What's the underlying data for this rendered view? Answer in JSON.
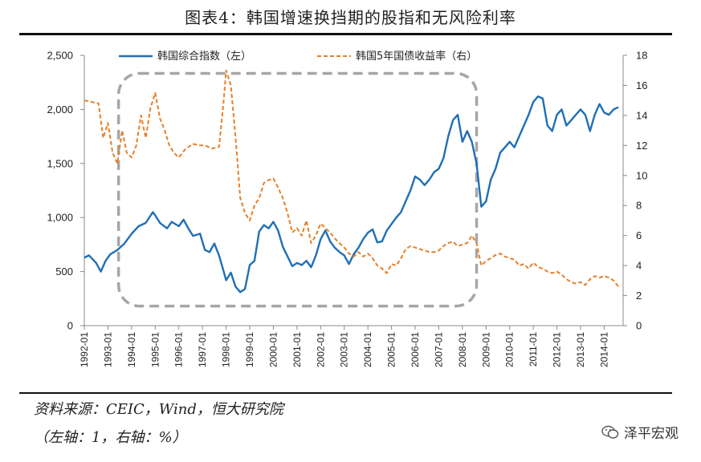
{
  "header": {
    "title": "图表4：韩国增速换挡期的股指和无风险利率"
  },
  "footer": {
    "source": "资料来源：CEIC，Wind，恒大研究院",
    "unit_note": "（左轴：1，右轴：%）",
    "brand": "泽平宏观"
  },
  "colors": {
    "index_line": "#1f6fb5",
    "yield_line": "#e5802a",
    "highlight_box": "#a6a6a6"
  },
  "chart_data": {
    "type": "line",
    "x_categories": [
      "1992-01",
      "1993-01",
      "1994-01",
      "1995-01",
      "1996-01",
      "1997-01",
      "1998-01",
      "1999-01",
      "2000-01",
      "2001-01",
      "2002-01",
      "2003-01",
      "2004-01",
      "2005-01",
      "2006-01",
      "2007-01",
      "2008-01",
      "2009-01",
      "2010-01",
      "2011-01",
      "2012-01",
      "2013-01",
      "2014-01"
    ],
    "y_left": {
      "min": 0,
      "max": 2500,
      "ticks": [
        "0",
        "500",
        "1,000",
        "1,500",
        "2,000",
        "2,500"
      ]
    },
    "y_right": {
      "min": 0,
      "max": 18,
      "ticks": [
        "0",
        "2",
        "4",
        "6",
        "8",
        "10",
        "12",
        "14",
        "16",
        "18"
      ]
    },
    "legend_position": "top",
    "annotation": "dashed rounded box highlighting 1993-2008",
    "series": [
      {
        "name": "韩国综合指数（左）",
        "axis": "left",
        "style": "solid",
        "points": [
          [
            1992.0,
            630
          ],
          [
            1992.2,
            650
          ],
          [
            1992.5,
            580
          ],
          [
            1992.7,
            500
          ],
          [
            1992.9,
            600
          ],
          [
            1993.1,
            660
          ],
          [
            1993.4,
            700
          ],
          [
            1993.7,
            760
          ],
          [
            1994.0,
            850
          ],
          [
            1994.3,
            920
          ],
          [
            1994.6,
            950
          ],
          [
            1994.9,
            1050
          ],
          [
            1995.0,
            1020
          ],
          [
            1995.2,
            950
          ],
          [
            1995.5,
            900
          ],
          [
            1995.7,
            960
          ],
          [
            1996.0,
            920
          ],
          [
            1996.2,
            980
          ],
          [
            1996.4,
            900
          ],
          [
            1996.6,
            830
          ],
          [
            1996.9,
            850
          ],
          [
            1997.1,
            700
          ],
          [
            1997.3,
            680
          ],
          [
            1997.5,
            760
          ],
          [
            1997.7,
            650
          ],
          [
            1997.9,
            500
          ],
          [
            1998.0,
            420
          ],
          [
            1998.2,
            490
          ],
          [
            1998.4,
            360
          ],
          [
            1998.6,
            310
          ],
          [
            1998.8,
            340
          ],
          [
            1999.0,
            560
          ],
          [
            1999.2,
            600
          ],
          [
            1999.4,
            870
          ],
          [
            1999.6,
            930
          ],
          [
            1999.8,
            900
          ],
          [
            2000.0,
            960
          ],
          [
            2000.2,
            880
          ],
          [
            2000.4,
            730
          ],
          [
            2000.6,
            640
          ],
          [
            2000.8,
            550
          ],
          [
            2001.0,
            580
          ],
          [
            2001.2,
            560
          ],
          [
            2001.4,
            600
          ],
          [
            2001.6,
            540
          ],
          [
            2001.8,
            650
          ],
          [
            2002.0,
            800
          ],
          [
            2002.2,
            880
          ],
          [
            2002.4,
            780
          ],
          [
            2002.6,
            720
          ],
          [
            2002.8,
            680
          ],
          [
            2003.0,
            650
          ],
          [
            2003.2,
            570
          ],
          [
            2003.4,
            660
          ],
          [
            2003.6,
            720
          ],
          [
            2003.8,
            800
          ],
          [
            2004.0,
            860
          ],
          [
            2004.2,
            890
          ],
          [
            2004.4,
            770
          ],
          [
            2004.6,
            780
          ],
          [
            2004.8,
            880
          ],
          [
            2005.0,
            940
          ],
          [
            2005.2,
            1000
          ],
          [
            2005.4,
            1050
          ],
          [
            2005.6,
            1150
          ],
          [
            2005.8,
            1250
          ],
          [
            2006.0,
            1380
          ],
          [
            2006.2,
            1350
          ],
          [
            2006.4,
            1300
          ],
          [
            2006.6,
            1350
          ],
          [
            2006.8,
            1420
          ],
          [
            2007.0,
            1450
          ],
          [
            2007.2,
            1550
          ],
          [
            2007.4,
            1750
          ],
          [
            2007.6,
            1900
          ],
          [
            2007.8,
            1950
          ],
          [
            2008.0,
            1700
          ],
          [
            2008.2,
            1800
          ],
          [
            2008.4,
            1700
          ],
          [
            2008.6,
            1500
          ],
          [
            2008.8,
            1100
          ],
          [
            2009.0,
            1150
          ],
          [
            2009.2,
            1350
          ],
          [
            2009.4,
            1450
          ],
          [
            2009.6,
            1600
          ],
          [
            2009.8,
            1650
          ],
          [
            2010.0,
            1700
          ],
          [
            2010.2,
            1650
          ],
          [
            2010.4,
            1750
          ],
          [
            2010.6,
            1850
          ],
          [
            2010.8,
            1950
          ],
          [
            2011.0,
            2070
          ],
          [
            2011.2,
            2120
          ],
          [
            2011.4,
            2100
          ],
          [
            2011.6,
            1850
          ],
          [
            2011.8,
            1800
          ],
          [
            2012.0,
            1950
          ],
          [
            2012.2,
            2000
          ],
          [
            2012.4,
            1850
          ],
          [
            2012.6,
            1900
          ],
          [
            2012.8,
            1950
          ],
          [
            2013.0,
            2000
          ],
          [
            2013.2,
            1950
          ],
          [
            2013.4,
            1800
          ],
          [
            2013.6,
            1950
          ],
          [
            2013.8,
            2050
          ],
          [
            2014.0,
            1970
          ],
          [
            2014.2,
            1950
          ],
          [
            2014.4,
            2000
          ],
          [
            2014.6,
            2020
          ]
        ]
      },
      {
        "name": "韩国5年国债收益率（右）",
        "axis": "right",
        "style": "dashed",
        "points": [
          [
            1992.0,
            15
          ],
          [
            1992.3,
            14.9
          ],
          [
            1992.6,
            14.8
          ],
          [
            1992.8,
            12.5
          ],
          [
            1993.0,
            13.5
          ],
          [
            1993.2,
            11.5
          ],
          [
            1993.4,
            10.8
          ],
          [
            1993.6,
            13
          ],
          [
            1993.8,
            11.5
          ],
          [
            1994.0,
            11.2
          ],
          [
            1994.2,
            12
          ],
          [
            1994.4,
            14
          ],
          [
            1994.6,
            12.5
          ],
          [
            1994.8,
            14.5
          ],
          [
            1995.0,
            15.5
          ],
          [
            1995.2,
            13.8
          ],
          [
            1995.4,
            13
          ],
          [
            1995.6,
            12
          ],
          [
            1995.8,
            11.5
          ],
          [
            1996.0,
            11.2
          ],
          [
            1996.3,
            11.8
          ],
          [
            1996.6,
            12.1
          ],
          [
            1996.9,
            12
          ],
          [
            1997.1,
            12
          ],
          [
            1997.4,
            11.8
          ],
          [
            1997.7,
            11.9
          ],
          [
            1997.9,
            15
          ],
          [
            1998.0,
            17
          ],
          [
            1998.2,
            16
          ],
          [
            1998.4,
            12.5
          ],
          [
            1998.6,
            8.5
          ],
          [
            1998.8,
            7.5
          ],
          [
            1999.0,
            7
          ],
          [
            1999.2,
            8
          ],
          [
            1999.4,
            8.5
          ],
          [
            1999.6,
            9.5
          ],
          [
            1999.8,
            9.7
          ],
          [
            2000.0,
            9.8
          ],
          [
            2000.2,
            9.2
          ],
          [
            2000.4,
            8.5
          ],
          [
            2000.6,
            7.5
          ],
          [
            2000.8,
            6.2
          ],
          [
            2001.0,
            6.5
          ],
          [
            2001.2,
            6
          ],
          [
            2001.4,
            7
          ],
          [
            2001.6,
            5.5
          ],
          [
            2001.8,
            6
          ],
          [
            2002.0,
            6.8
          ],
          [
            2002.2,
            6.5
          ],
          [
            2002.4,
            6.2
          ],
          [
            2002.6,
            5.8
          ],
          [
            2002.8,
            5.5
          ],
          [
            2003.0,
            5.2
          ],
          [
            2003.2,
            4.8
          ],
          [
            2003.4,
            4.6
          ],
          [
            2003.6,
            4.9
          ],
          [
            2003.8,
            4.6
          ],
          [
            2004.0,
            4.8
          ],
          [
            2004.2,
            4.5
          ],
          [
            2004.4,
            4
          ],
          [
            2004.6,
            3.8
          ],
          [
            2004.8,
            3.5
          ],
          [
            2005.0,
            4.1
          ],
          [
            2005.2,
            4
          ],
          [
            2005.4,
            4.5
          ],
          [
            2005.6,
            5.1
          ],
          [
            2005.8,
            5.3
          ],
          [
            2006.0,
            5.2
          ],
          [
            2006.2,
            5.1
          ],
          [
            2006.4,
            5
          ],
          [
            2006.6,
            4.9
          ],
          [
            2006.8,
            4.9
          ],
          [
            2007.0,
            5
          ],
          [
            2007.2,
            5.3
          ],
          [
            2007.4,
            5.5
          ],
          [
            2007.6,
            5.6
          ],
          [
            2007.8,
            5.3
          ],
          [
            2008.0,
            5.4
          ],
          [
            2008.2,
            5.5
          ],
          [
            2008.4,
            6
          ],
          [
            2008.6,
            5.5
          ],
          [
            2008.8,
            4
          ],
          [
            2009.0,
            4.3
          ],
          [
            2009.2,
            4.5
          ],
          [
            2009.4,
            4.7
          ],
          [
            2009.6,
            4.8
          ],
          [
            2009.8,
            4.6
          ],
          [
            2010.0,
            4.5
          ],
          [
            2010.2,
            4.4
          ],
          [
            2010.4,
            4
          ],
          [
            2010.6,
            4.1
          ],
          [
            2010.8,
            3.8
          ],
          [
            2011.0,
            4.2
          ],
          [
            2011.2,
            3.9
          ],
          [
            2011.4,
            3.8
          ],
          [
            2011.6,
            3.6
          ],
          [
            2011.8,
            3.5
          ],
          [
            2012.0,
            3.6
          ],
          [
            2012.2,
            3.4
          ],
          [
            2012.4,
            3.1
          ],
          [
            2012.6,
            2.9
          ],
          [
            2012.8,
            2.8
          ],
          [
            2013.0,
            2.9
          ],
          [
            2013.2,
            2.7
          ],
          [
            2013.4,
            3.1
          ],
          [
            2013.6,
            3.3
          ],
          [
            2013.8,
            3.2
          ],
          [
            2014.0,
            3.3
          ],
          [
            2014.2,
            3.2
          ],
          [
            2014.4,
            3
          ],
          [
            2014.6,
            2.6
          ]
        ]
      }
    ]
  }
}
